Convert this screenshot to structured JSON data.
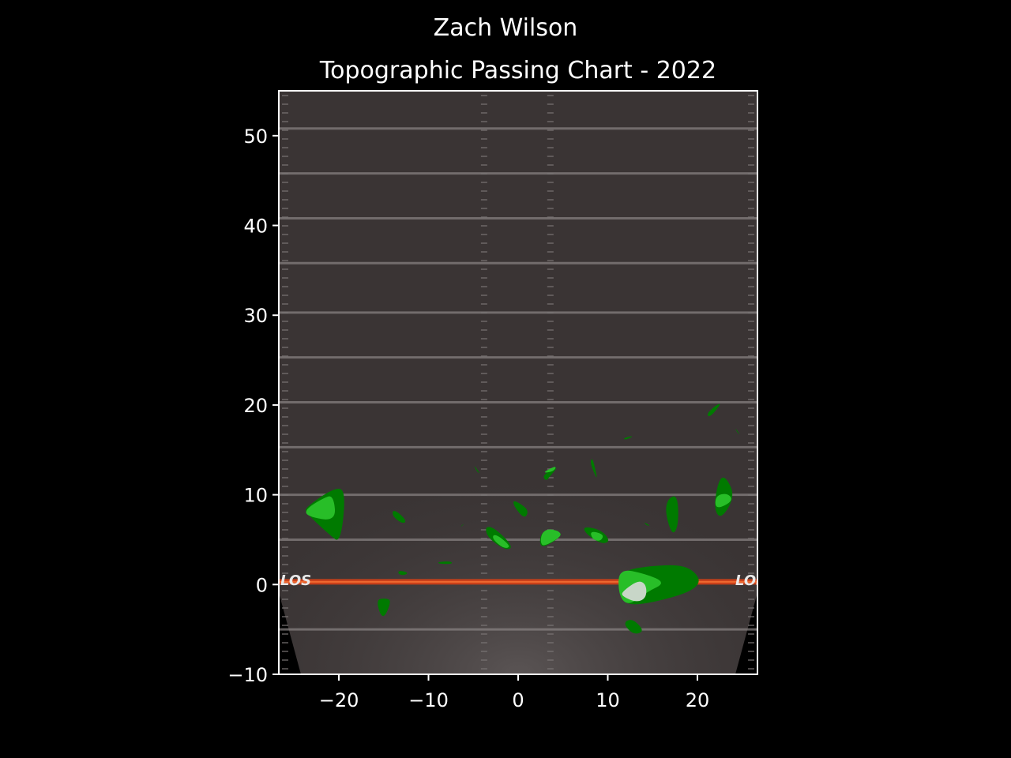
{
  "suptitle": "Zach Wilson",
  "chart_data": {
    "type": "contour",
    "title": "Topographic Passing Chart - 2022",
    "xlabel": "",
    "ylabel": "",
    "xlim": [
      -26.7,
      26.7
    ],
    "ylim": [
      -10,
      55
    ],
    "xticks": [
      -20,
      -10,
      0,
      10,
      20
    ],
    "yticks": [
      -10,
      0,
      10,
      20,
      30,
      40,
      50
    ],
    "xtick_labels": [
      "−20",
      "−10",
      "0",
      "10",
      "20"
    ],
    "ytick_labels": [
      "−10",
      "0",
      "10",
      "20",
      "30",
      "40",
      "50"
    ],
    "grid": false,
    "legend": "none",
    "background": {
      "field_color": "#3a3434",
      "yard_line_color": "#8a8585",
      "line_of_scrimmage_y": 0.3,
      "line_of_scrimmage_color": "#c8401a",
      "line_of_scrimmage_label": "LOS",
      "yard_lines_y": [
        -5,
        5,
        10,
        15.3,
        20.3,
        25.3,
        30.3,
        35.8,
        40.8,
        45.8,
        50.8
      ]
    },
    "levels": [
      {
        "name": "level-1",
        "color": "#007a00"
      },
      {
        "name": "level-2",
        "color": "#28be28"
      },
      {
        "name": "level-3",
        "color": "#c8d6c8"
      }
    ],
    "regions": [
      {
        "level": 1,
        "points": [
          [
            -23.7,
            8.6
          ],
          [
            -20.5,
            10.8
          ],
          [
            -19.2,
            10.5
          ],
          [
            -19.8,
            4.6
          ],
          [
            -21,
            5.5
          ],
          [
            -23.7,
            8
          ]
        ]
      },
      {
        "level": 2,
        "points": [
          [
            -23.7,
            8.4
          ],
          [
            -21.8,
            9.6
          ],
          [
            -20.6,
            10.0
          ],
          [
            -20.3,
            7.0
          ],
          [
            -23.6,
            7.6
          ]
        ]
      },
      {
        "level": 1,
        "points": [
          [
            -14.8,
            -1.5
          ],
          [
            -15.9,
            -1.7
          ],
          [
            -15.1,
            -4.1
          ],
          [
            -14.1,
            -1.8
          ]
        ]
      },
      {
        "level": 1,
        "points": [
          [
            -14,
            8.3
          ],
          [
            -13.3,
            8.0
          ],
          [
            -12.4,
            7
          ],
          [
            -13,
            6.8
          ],
          [
            -14,
            7.6
          ]
        ]
      },
      {
        "level": 1,
        "points": [
          [
            -13.3,
            1.6
          ],
          [
            -12.2,
            1.3
          ],
          [
            -12.8,
            1.0
          ],
          [
            -13.4,
            1.2
          ]
        ]
      },
      {
        "level": 1,
        "points": [
          [
            -9,
            2.5
          ],
          [
            -7.5,
            2.6
          ],
          [
            -7.3,
            2.3
          ],
          [
            -8.8,
            2.3
          ]
        ]
      },
      {
        "level": 1,
        "points": [
          [
            -6.4,
            6.4
          ],
          [
            -6.0,
            6.8
          ],
          [
            -6.3,
            6.6
          ]
        ]
      },
      {
        "level": 1,
        "points": [
          [
            -5,
            13.4
          ],
          [
            -4.2,
            12.3
          ],
          [
            -4.6,
            12.6
          ]
        ]
      },
      {
        "level": 1,
        "points": [
          [
            -3.7,
            6.5
          ],
          [
            -2.6,
            6.3
          ],
          [
            -0.5,
            4.2
          ],
          [
            -1.4,
            3.8
          ],
          [
            -3.4,
            5.2
          ]
        ]
      },
      {
        "level": 2,
        "points": [
          [
            -2.8,
            5.6
          ],
          [
            -2.0,
            5.3
          ],
          [
            -0.8,
            4.2
          ],
          [
            -1.6,
            4.0
          ],
          [
            -2.8,
            5.0
          ]
        ]
      },
      {
        "level": 1,
        "points": [
          [
            -0.6,
            9.4
          ],
          [
            0.3,
            9.0
          ],
          [
            1.2,
            8.2
          ],
          [
            0.7,
            7.3
          ],
          [
            -0.4,
            8.6
          ]
        ]
      },
      {
        "level": 1,
        "points": [
          [
            2.7,
            12.2
          ],
          [
            4.6,
            13.3
          ],
          [
            3.5,
            12.0
          ],
          [
            3.1,
            11.5
          ]
        ]
      },
      {
        "level": 2,
        "points": [
          [
            2.6,
            12.4
          ],
          [
            4.3,
            13.3
          ],
          [
            4.0,
            12.6
          ]
        ]
      },
      {
        "level": 1,
        "points": [
          [
            2.5,
            5.6
          ],
          [
            3.3,
            6.2
          ],
          [
            4.5,
            6.0
          ],
          [
            4.9,
            5.4
          ],
          [
            3.0,
            4.2
          ],
          [
            2.4,
            4.4
          ]
        ]
      },
      {
        "level": 2,
        "points": [
          [
            2.6,
            5.7
          ],
          [
            3.3,
            6.2
          ],
          [
            4.5,
            6.0
          ],
          [
            4.9,
            5.4
          ],
          [
            3.0,
            4.3
          ],
          [
            2.5,
            4.5
          ]
        ]
      },
      {
        "level": 1,
        "points": [
          [
            8.3,
            14.2
          ],
          [
            8.8,
            12.0
          ],
          [
            8.7,
            11.9
          ],
          [
            8.0,
            13.6
          ]
        ]
      },
      {
        "level": 1,
        "points": [
          [
            7.2,
            6.5
          ],
          [
            9.3,
            6.1
          ],
          [
            10.3,
            4.8
          ],
          [
            9.3,
            4.5
          ],
          [
            7.6,
            5.6
          ]
        ]
      },
      {
        "level": 2,
        "points": [
          [
            8.0,
            6.0
          ],
          [
            9.6,
            5.6
          ],
          [
            9.2,
            4.8
          ],
          [
            8.3,
            5.0
          ]
        ]
      },
      {
        "level": 1,
        "points": [
          [
            11.7,
            16.3
          ],
          [
            13.0,
            16.6
          ],
          [
            12.0,
            16.1
          ]
        ]
      },
      {
        "level": 1,
        "points": [
          [
            14.0,
            7.0
          ],
          [
            14.8,
            6.5
          ],
          [
            14.3,
            6.6
          ]
        ]
      },
      {
        "level": 1,
        "points": [
          [
            16.7,
            9.6
          ],
          [
            17.8,
            10.0
          ],
          [
            17.9,
            6.6
          ],
          [
            17.2,
            5.4
          ],
          [
            16.4,
            8.0
          ]
        ]
      },
      {
        "level": 1,
        "points": [
          [
            22.1,
            20.0
          ],
          [
            22.7,
            20.2
          ],
          [
            21.4,
            18.6
          ],
          [
            21.0,
            19.0
          ]
        ]
      },
      {
        "level": 1,
        "points": [
          [
            24.2,
            17.5
          ],
          [
            24.8,
            16.6
          ],
          [
            24.4,
            17.0
          ]
        ]
      },
      {
        "level": 1,
        "points": [
          [
            22.4,
            11.8
          ],
          [
            23.2,
            12.0
          ],
          [
            24.2,
            9.8
          ],
          [
            22.6,
            7.2
          ],
          [
            21.8,
            8.6
          ]
        ]
      },
      {
        "level": 2,
        "points": [
          [
            22.0,
            9.9
          ],
          [
            23.4,
            10.2
          ],
          [
            24.0,
            9.3
          ],
          [
            22.0,
            8.3
          ]
        ]
      },
      {
        "level": 1,
        "points": [
          [
            11.2,
            1.4
          ],
          [
            14.6,
            2.1
          ],
          [
            19.2,
            2.2
          ],
          [
            20.8,
            -0.4
          ],
          [
            13.6,
            -2.4
          ],
          [
            11.3,
            -1.9
          ]
        ]
      },
      {
        "level": 2,
        "points": [
          [
            11.2,
            1.8
          ],
          [
            14.2,
            1.2
          ],
          [
            16.5,
            0.2
          ],
          [
            14.4,
            -0.8
          ],
          [
            12.3,
            -2.4
          ],
          [
            11.2,
            -1.2
          ]
        ]
      },
      {
        "level": 3,
        "points": [
          [
            11.6,
            -0.8
          ],
          [
            13.4,
            0.5
          ],
          [
            14.3,
            0.0
          ],
          [
            14.3,
            -1.5
          ],
          [
            13.2,
            -2.0
          ],
          [
            11.6,
            -1.3
          ]
        ]
      },
      {
        "level": 1,
        "points": [
          [
            12.0,
            -4.0
          ],
          [
            12.9,
            -3.9
          ],
          [
            14.1,
            -5.2
          ],
          [
            12.9,
            -5.6
          ],
          [
            11.9,
            -4.6
          ]
        ]
      }
    ]
  }
}
